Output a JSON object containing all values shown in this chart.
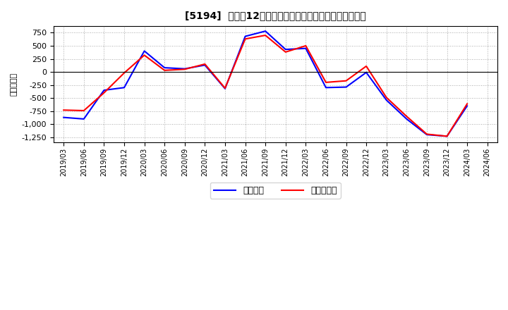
{
  "title": "[5194]  利益だ12か月移動合計の対前年同期増減額の推移",
  "ylabel": "（百万円）",
  "legend_labels": [
    "経常利益",
    "当期純利益"
  ],
  "line_colors": [
    "#0000ff",
    "#ff0000"
  ],
  "background_color": "#ffffff",
  "plot_bg_color": "#ffffff",
  "grid_color": "#aaaaaa",
  "ylim": [
    -1350,
    875
  ],
  "yticks": [
    -1250,
    -1000,
    -750,
    -500,
    -250,
    0,
    250,
    500,
    750
  ],
  "x_labels": [
    "2019/03",
    "2019/06",
    "2019/09",
    "2019/12",
    "2020/03",
    "2020/06",
    "2020/09",
    "2020/12",
    "2021/03",
    "2021/06",
    "2021/09",
    "2021/12",
    "2022/03",
    "2022/06",
    "2022/09",
    "2022/12",
    "2023/03",
    "2023/06",
    "2023/09",
    "2023/12",
    "2024/03",
    "2024/06"
  ],
  "series_keiri": [
    -870,
    -900,
    -350,
    -300,
    400,
    80,
    60,
    130,
    -320,
    680,
    780,
    430,
    450,
    -300,
    -290,
    -10,
    -540,
    -900,
    -1200,
    -1230,
    -650,
    null
  ],
  "series_junri": [
    -730,
    -740,
    -400,
    -20,
    320,
    30,
    50,
    150,
    -310,
    630,
    700,
    380,
    500,
    -200,
    -170,
    110,
    -490,
    -850,
    -1190,
    -1230,
    -610,
    null
  ]
}
